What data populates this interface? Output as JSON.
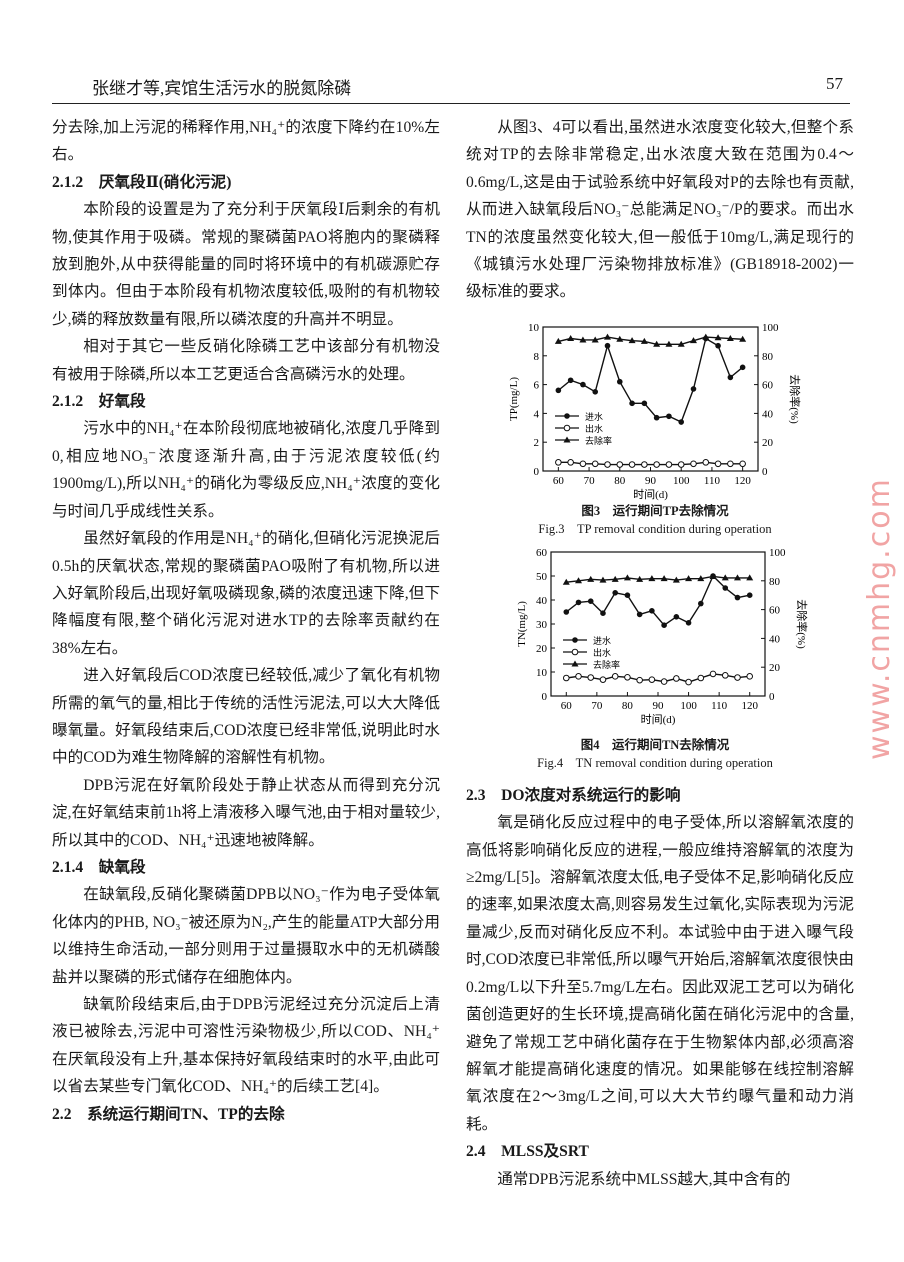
{
  "header": {
    "running_title": "张继才等,宾馆生活污水的脱氮除磷",
    "page_number": "57"
  },
  "left_column": [
    {
      "type": "p",
      "noindent": true,
      "text": "分去除,加上污泥的稀释作用,NH₄⁺的浓度下降约在10%左右。"
    },
    {
      "type": "h",
      "text": "2.1.2　厌氧段Ⅱ(硝化污泥)"
    },
    {
      "type": "p",
      "text": "本阶段的设置是为了充分利于厌氧段Ⅰ后剩余的有机物,使其作用于吸磷。常规的聚磷菌PAO将胞内的聚磷释放到胞外,从中获得能量的同时将环境中的有机碳源贮存到体内。但由于本阶段有机物浓度较低,吸附的有机物较少,磷的释放数量有限,所以磷浓度的升高并不明显。"
    },
    {
      "type": "p",
      "text": "相对于其它一些反硝化除磷工艺中该部分有机物没有被用于除磷,所以本工艺更适合含高磷污水的处理。"
    },
    {
      "type": "h",
      "text": "2.1.2　好氧段"
    },
    {
      "type": "p",
      "text": "污水中的NH₄⁺在本阶段彻底地被硝化,浓度几乎降到0,相应地NO₃⁻浓度逐渐升高,由于污泥浓度较低(约1900mg/L),所以NH₄⁺的硝化为零级反应,NH₄⁺浓度的变化与时间几乎成线性关系。"
    },
    {
      "type": "p",
      "text": "虽然好氧段的作用是NH₄⁺的硝化,但硝化污泥换泥后0.5h的厌氧状态,常规的聚磷菌PAO吸附了有机物,所以进入好氧阶段后,出现好氧吸磷现象,磷的浓度迅速下降,但下降幅度有限,整个硝化污泥对进水TP的去除率贡献约在38%左右。"
    },
    {
      "type": "p",
      "text": "进入好氧段后COD浓度已经较低,减少了氧化有机物所需的氧气的量,相比于传统的活性污泥法,可以大大降低曝氧量。好氧段结束后,COD浓度已经非常低,说明此时水中的COD为难生物降解的溶解性有机物。"
    },
    {
      "type": "p",
      "text": "DPB污泥在好氧阶段处于静止状态从而得到充分沉淀,在好氧结束前1h将上清液移入曝气池,由于相对量较少,所以其中的COD、NH₄⁺迅速地被降解。"
    },
    {
      "type": "h",
      "text": "2.1.4　缺氧段"
    },
    {
      "type": "p",
      "text": "在缺氧段,反硝化聚磷菌DPB以NO₃⁻作为电子受体氧化体内的PHB, NO₃⁻被还原为N₂,产生的能量ATP大部分用以维持生命活动,一部分则用于过量摄取水中的无机磷酸盐并以聚磷的形式储存在细胞体内。"
    },
    {
      "type": "p",
      "text": "缺氧阶段结束后,由于DPB污泥经过充分沉淀后上清液已被除去,污泥中可溶性污染物极少,所以COD、NH₄⁺在厌氧段没有上升,基本保持好氧段结束时的水平,由此可以省去某些专门氧化COD、NH₄⁺的后续工艺[4]。"
    },
    {
      "type": "h",
      "text": "2.2　系统运行期间TN、TP的去除"
    }
  ],
  "right_column_top": [
    {
      "type": "p",
      "text": "从图3、4可以看出,虽然进水浓度变化较大,但整个系统对TP的去除非常稳定,出水浓度大致在范围为0.4～0.6mg/L,这是由于试验系统中好氧段对P的去除也有贡献,从而进入缺氧段后NO₃⁻总能满足NO₃⁻/P的要求。而出水TN的浓度虽然变化较大,但一般低于10mg/L,满足现行的《城镇污水处理厂污染物排放标准》(GB18918-2002)一级标准的要求。"
    }
  ],
  "right_column_bottom": [
    {
      "type": "h",
      "text": "2.3　DO浓度对系统运行的影响"
    },
    {
      "type": "p",
      "text": "氧是硝化反应过程中的电子受体,所以溶解氧浓度的高低将影响硝化反应的进程,一般应维持溶解氧的浓度为≥2mg/L[5]。溶解氧浓度太低,电子受体不足,影响硝化反应的速率,如果浓度太高,则容易发生过氧化,实际表现为污泥量减少,反而对硝化反应不利。本试验中由于进入曝气段时,COD浓度已非常低,所以曝气开始后,溶解氧浓度很快由0.2mg/L以下升至5.7mg/L左右。因此双泥工艺可以为硝化菌创造更好的生长环境,提高硝化菌在硝化污泥中的含量,避免了常规工艺中硝化菌存在于生物絮体内部,必须高溶解氧才能提高硝化速度的情况。如果能够在线控制溶解氧浓度在2～3mg/L之间,可以大大节约曝气量和动力消耗。"
    },
    {
      "type": "h",
      "text": "2.4　MLSS及SRT"
    },
    {
      "type": "p",
      "text": "通常DPB污泥系统中MLSS越大,其中含有的"
    }
  ],
  "watermark": "www.cnmhg.com",
  "chart_data": [
    {
      "type": "line",
      "caption_cn": "图3　运行期间TP去除情况",
      "caption_en": "Fig.3　TP removal condition during operation",
      "xlabel": "时间(d)",
      "ylabel": "TP(mg/L)",
      "y2label": "去除率(%)",
      "xlim": [
        55,
        125
      ],
      "ylim": [
        0,
        10
      ],
      "y2lim": [
        0,
        100
      ],
      "xticks": [
        "60",
        "70",
        "80",
        "90",
        "100",
        "110",
        "120"
      ],
      "yticks": [
        "0",
        "2",
        "4",
        "6",
        "8",
        "10"
      ],
      "y2ticks": [
        "0",
        "20",
        "40",
        "60",
        "80",
        "100"
      ],
      "legend_position": "center-left",
      "x": [
        60,
        64,
        68,
        72,
        76,
        80,
        84,
        88,
        92,
        96,
        100,
        104,
        108,
        112,
        116,
        120
      ],
      "series": [
        {
          "name": "进水",
          "marker": "filled-circle",
          "axis": "left",
          "values": [
            5.6,
            6.3,
            6.0,
            5.5,
            8.7,
            6.2,
            4.7,
            4.7,
            3.7,
            3.8,
            3.4,
            5.7,
            9.2,
            8.7,
            6.5,
            7.2
          ]
        },
        {
          "name": "出水",
          "marker": "open-circle",
          "axis": "left",
          "values": [
            0.6,
            0.6,
            0.5,
            0.5,
            0.45,
            0.45,
            0.45,
            0.45,
            0.45,
            0.45,
            0.45,
            0.5,
            0.6,
            0.5,
            0.5,
            0.5
          ]
        },
        {
          "name": "去除率",
          "marker": "filled-triangle",
          "axis": "right",
          "values": [
            90,
            92,
            91,
            91,
            93,
            91.5,
            90.5,
            90,
            88,
            88,
            88,
            90.5,
            93,
            92.5,
            92,
            91.5
          ]
        }
      ]
    },
    {
      "type": "line",
      "caption_cn": "图4　运行期间TN去除情况",
      "caption_en": "Fig.4　TN removal condition during operation",
      "xlabel": "时间(d)",
      "ylabel": "TN(mg/L)",
      "y2label": "去除率(%)",
      "xlim": [
        55,
        125
      ],
      "ylim": [
        0,
        60
      ],
      "y2lim": [
        0,
        100
      ],
      "xticks": [
        "60",
        "70",
        "80",
        "90",
        "100",
        "110",
        "120"
      ],
      "yticks": [
        "0",
        "10",
        "20",
        "30",
        "40",
        "50",
        "60"
      ],
      "y2ticks": [
        "0",
        "20",
        "40",
        "60",
        "80",
        "100"
      ],
      "legend_position": "center-left",
      "x": [
        60,
        64,
        68,
        72,
        76,
        80,
        84,
        88,
        92,
        96,
        100,
        104,
        108,
        112,
        116,
        120
      ],
      "series": [
        {
          "name": "进水",
          "marker": "filled-circle",
          "axis": "left",
          "values": [
            35,
            39,
            39.5,
            34.5,
            43,
            42,
            34,
            35.5,
            29.5,
            33,
            30.5,
            38.5,
            50,
            45,
            41,
            42
          ]
        },
        {
          "name": "出水",
          "marker": "open-circle",
          "axis": "left",
          "values": [
            7.5,
            8.2,
            7.7,
            6.8,
            8.2,
            7.8,
            6.6,
            6.8,
            6,
            7.3,
            5.8,
            7.5,
            9.2,
            8.6,
            7.7,
            8.2
          ]
        },
        {
          "name": "去除率",
          "marker": "filled-triangle",
          "axis": "right",
          "values": [
            79,
            80,
            81,
            80.5,
            81,
            82,
            81,
            81.5,
            81.5,
            80.5,
            81.5,
            81.5,
            83,
            82,
            82,
            82
          ]
        }
      ]
    }
  ]
}
